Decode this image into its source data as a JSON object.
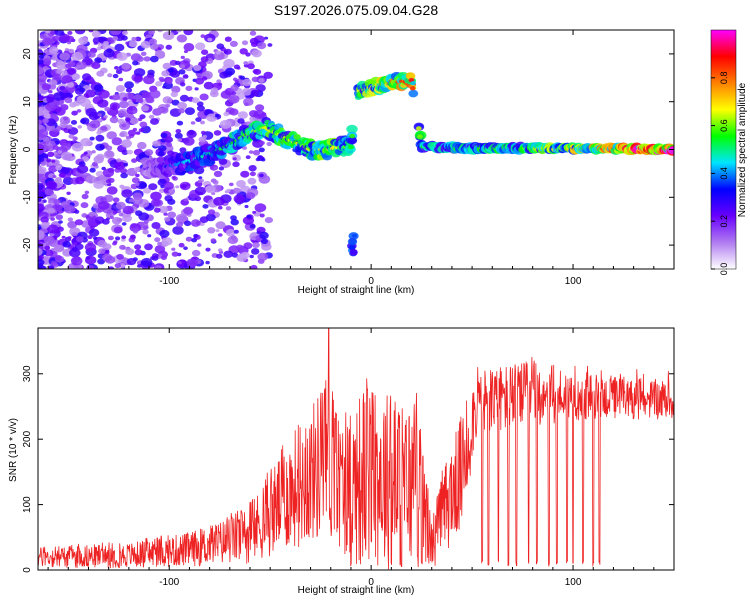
{
  "title": "S197.2026.075.09.04.G28",
  "chart_data": [
    {
      "type": "heatmap",
      "name": "spectrogram",
      "xlabel": "Height of straight line (km)",
      "ylabel": "Frequency (Hz)",
      "xlim": [
        -165,
        150
      ],
      "ylim": [
        -25,
        25
      ],
      "xticks": [
        -100,
        0,
        100
      ],
      "xtick_labels": [
        "-100",
        "0",
        "100"
      ],
      "yticks": [
        -20,
        -10,
        0,
        10,
        20
      ],
      "ytick_labels": [
        "-20",
        "-10",
        "0",
        "10",
        "20"
      ],
      "colorbar": {
        "label": "Normalized spectral amplitude",
        "range": [
          0,
          1
        ],
        "ticks": [
          0.0,
          0.2,
          0.4,
          0.6,
          0.8
        ],
        "tick_labels": [
          "0.0",
          "0.2",
          "0.4",
          "0.6",
          "0.8"
        ],
        "colormap": [
          "#ffffff",
          "#b07cf0",
          "#6a00ff",
          "#0000ff",
          "#00e5ff",
          "#00ff00",
          "#ffff00",
          "#ff8000",
          "#ff0000",
          "#ff00ff"
        ]
      },
      "ridge": [
        {
          "x": -110,
          "f": -4.0,
          "a": 0.15
        },
        {
          "x": -100,
          "f": -3.5,
          "a": 0.25
        },
        {
          "x": -90,
          "f": -2.5,
          "a": 0.35
        },
        {
          "x": -80,
          "f": -1.0,
          "a": 0.4
        },
        {
          "x": -70,
          "f": 1.0,
          "a": 0.45
        },
        {
          "x": -60,
          "f": 3.5,
          "a": 0.5
        },
        {
          "x": -52,
          "f": 4.5,
          "a": 0.55
        },
        {
          "x": -45,
          "f": 3.0,
          "a": 0.55
        },
        {
          "x": -38,
          "f": 1.5,
          "a": 0.55
        },
        {
          "x": -30,
          "f": 0.0,
          "a": 0.55
        },
        {
          "x": -22,
          "f": 0.0,
          "a": 0.6
        },
        {
          "x": -15,
          "f": 0.5,
          "a": 0.55
        },
        {
          "x": -10,
          "f": 0.5,
          "a": 0.45
        },
        {
          "x": -7,
          "f": 12.0,
          "a": 0.55
        },
        {
          "x": 0,
          "f": 13.0,
          "a": 0.6
        },
        {
          "x": 10,
          "f": 14.0,
          "a": 0.7
        },
        {
          "x": 20,
          "f": 14.5,
          "a": 0.8
        },
        {
          "x": 25,
          "f": 0.5,
          "a": 0.45
        },
        {
          "x": 50,
          "f": 0.3,
          "a": 0.5
        },
        {
          "x": 80,
          "f": 0.3,
          "a": 0.55
        },
        {
          "x": 100,
          "f": 0.2,
          "a": 0.65
        },
        {
          "x": 120,
          "f": 0.2,
          "a": 0.8
        },
        {
          "x": 140,
          "f": 0.0,
          "a": 0.95
        },
        {
          "x": 150,
          "f": 0.0,
          "a": 1.0
        }
      ]
    },
    {
      "type": "line",
      "name": "snr",
      "xlabel": "Height of straight line (km)",
      "ylabel": "SNR (10 * v/v)",
      "xlim": [
        -165,
        150
      ],
      "ylim": [
        0,
        370
      ],
      "xticks": [
        -100,
        0,
        100
      ],
      "xtick_labels": [
        "-100",
        "0",
        "100"
      ],
      "yticks": [
        0,
        100,
        200,
        300
      ],
      "ytick_labels": [
        "0",
        "100",
        "200",
        "300"
      ],
      "color": "#ee2222",
      "envelope": [
        {
          "x": -165,
          "lo": 3,
          "hi": 35
        },
        {
          "x": -120,
          "lo": 3,
          "hi": 42
        },
        {
          "x": -90,
          "lo": 5,
          "hi": 58
        },
        {
          "x": -75,
          "lo": 8,
          "hi": 75
        },
        {
          "x": -60,
          "lo": 10,
          "hi": 100
        },
        {
          "x": -50,
          "lo": 20,
          "hi": 150
        },
        {
          "x": -42,
          "lo": 30,
          "hi": 200
        },
        {
          "x": -30,
          "lo": 40,
          "hi": 250
        },
        {
          "x": -22,
          "lo": 45,
          "hi": 300
        },
        {
          "x": -15,
          "lo": 30,
          "hi": 230
        },
        {
          "x": -10,
          "lo": 10,
          "hi": 240
        },
        {
          "x": -5,
          "lo": 0,
          "hi": 280
        },
        {
          "x": 5,
          "lo": 0,
          "hi": 290
        },
        {
          "x": 15,
          "lo": 0,
          "hi": 250
        },
        {
          "x": 22,
          "lo": 0,
          "hi": 270
        },
        {
          "x": 30,
          "lo": 0,
          "hi": 80
        },
        {
          "x": 38,
          "lo": 30,
          "hi": 180
        },
        {
          "x": 45,
          "lo": 60,
          "hi": 240
        },
        {
          "x": 52,
          "lo": 200,
          "hi": 310
        },
        {
          "x": 80,
          "lo": 220,
          "hi": 320
        },
        {
          "x": 110,
          "lo": 230,
          "hi": 300
        },
        {
          "x": 150,
          "lo": 230,
          "hi": 290
        }
      ],
      "dropouts": [
        -10,
        10,
        15,
        25,
        55,
        58,
        63,
        68,
        72,
        78,
        82,
        88,
        92,
        97,
        100,
        105,
        110,
        113
      ]
    }
  ]
}
